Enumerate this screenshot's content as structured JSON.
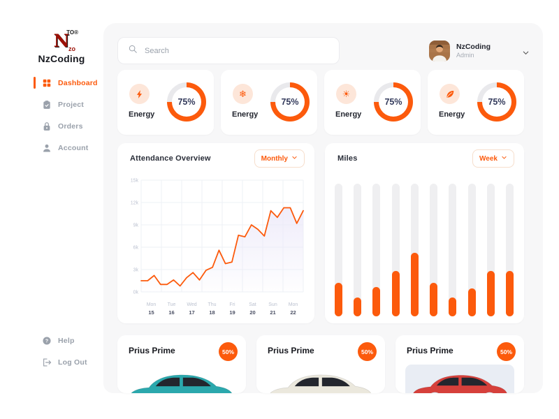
{
  "app": {
    "brand": "NzCoding"
  },
  "logo": {
    "main": "N",
    "sup": "TO®",
    "sub": "zo"
  },
  "sidebar": {
    "items": [
      {
        "label": "Dashboard",
        "icon": "grid-icon",
        "active": true
      },
      {
        "label": "Project",
        "icon": "clipboard-icon",
        "active": false
      },
      {
        "label": "Orders",
        "icon": "lock-icon",
        "active": false
      },
      {
        "label": "Account",
        "icon": "person-icon",
        "active": false
      }
    ],
    "footer": [
      {
        "label": "Help",
        "icon": "help-icon",
        "active": false
      },
      {
        "label": "Log Out",
        "icon": "logout-icon",
        "active": false
      }
    ]
  },
  "header": {
    "search_placeholder": "Search",
    "user": {
      "name": "NzCoding",
      "role": "Admin"
    }
  },
  "stats": {
    "cards": [
      {
        "icon": "bolt-icon",
        "label": "Energy",
        "value": "75%",
        "percent": 75
      },
      {
        "icon": "snowflake-icon",
        "label": "Energy",
        "value": "75%",
        "percent": 75
      },
      {
        "icon": "sun-icon",
        "label": "Energy",
        "value": "75%",
        "percent": 75
      },
      {
        "icon": "leaf-icon",
        "label": "Energy",
        "value": "75%",
        "percent": 75
      }
    ]
  },
  "chart_data": [
    {
      "type": "line",
      "title": "Attendance Overview",
      "period_selector": "Monthly",
      "days": [
        "Mon",
        "Tue",
        "Wed",
        "Thu",
        "Fri",
        "Sat",
        "Sun",
        "Mon"
      ],
      "dates": [
        "15",
        "16",
        "17",
        "18",
        "19",
        "20",
        "21",
        "22"
      ],
      "y_ticks": [
        "15k",
        "12k",
        "9k",
        "6k",
        "3k",
        "0k"
      ],
      "ylim": [
        0,
        15
      ],
      "values_k": [
        1.5,
        1.5,
        2.2,
        1.0,
        1.0,
        1.6,
        0.8,
        1.9,
        2.6,
        1.6,
        2.9,
        3.3,
        5.6,
        3.8,
        4.0,
        7.6,
        7.4,
        9.0,
        8.4,
        7.5,
        10.9,
        10.0,
        11.3,
        11.3,
        9.2,
        10.9
      ],
      "grid": true,
      "line_color": "#FC5A0C",
      "area_fill": "#ECE9F9"
    },
    {
      "type": "bar",
      "title": "Miles",
      "period_selector": "Week",
      "values_pct": [
        25,
        14,
        22,
        34,
        48,
        25,
        14,
        21,
        34,
        34
      ],
      "ylim": [
        0,
        100
      ],
      "bar_color": "#FC5A0C",
      "track_color": "#EFEFF1",
      "legend": "none"
    }
  ],
  "vehicles": {
    "cards": [
      {
        "title": "Prius Prime",
        "badge": "50%",
        "car_color": "#2BA8AD",
        "has_panel": false
      },
      {
        "title": "Prius Prime",
        "badge": "50%",
        "car_color": "#EBE8DD",
        "has_panel": false
      },
      {
        "title": "Prius Prime",
        "badge": "50%",
        "car_color": "#D6403B",
        "has_panel": true
      }
    ]
  },
  "colors": {
    "accent": "#FC5A0C",
    "icon_bg": "#FDE6D9",
    "navy": "#343B5C",
    "muted": "#9AA1AB",
    "main_bg": "#F7F7F8",
    "grid": "#EDF0F6",
    "track": "#EFEFF1",
    "panel": "#E9EDF4",
    "logo_red": "#9C1006"
  }
}
